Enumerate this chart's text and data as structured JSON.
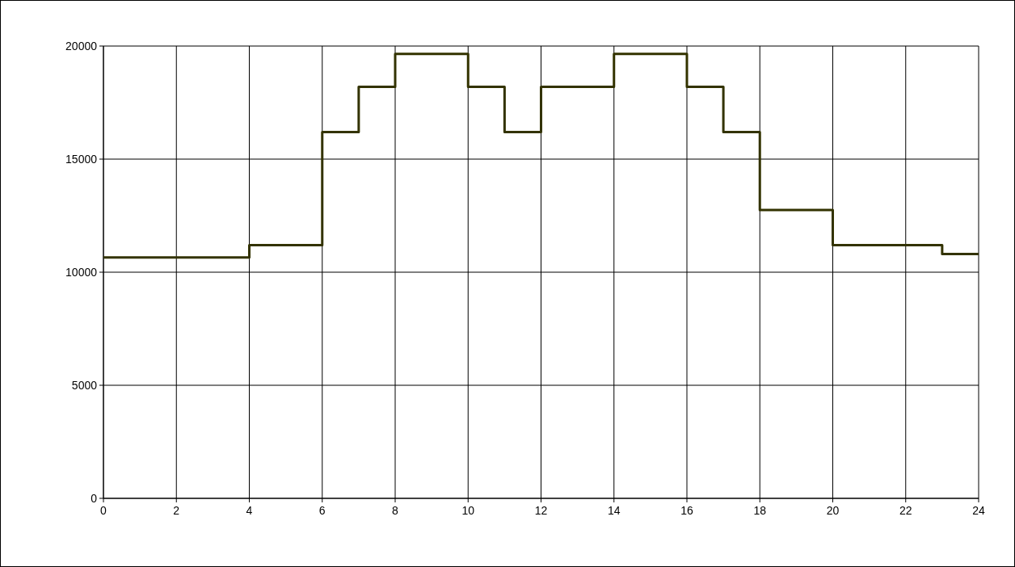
{
  "chart_data": {
    "type": "step",
    "x": [
      0,
      4,
      6,
      7,
      8,
      10,
      11,
      12,
      14,
      16,
      17,
      18,
      20,
      23,
      24
    ],
    "series": [
      {
        "color": "#333300",
        "values": [
          10650,
          11200,
          16200,
          18200,
          19650,
          18200,
          16200,
          18200,
          19650,
          18200,
          16200,
          12750,
          11200,
          10800,
          10800
        ]
      }
    ],
    "xlim": [
      0,
      24
    ],
    "xticks": [
      0,
      2,
      4,
      6,
      8,
      10,
      12,
      14,
      16,
      18,
      20,
      22,
      24
    ],
    "ylim": [
      0,
      20000
    ],
    "yticks": [
      0,
      5000,
      10000,
      15000,
      20000
    ],
    "grid": true
  }
}
